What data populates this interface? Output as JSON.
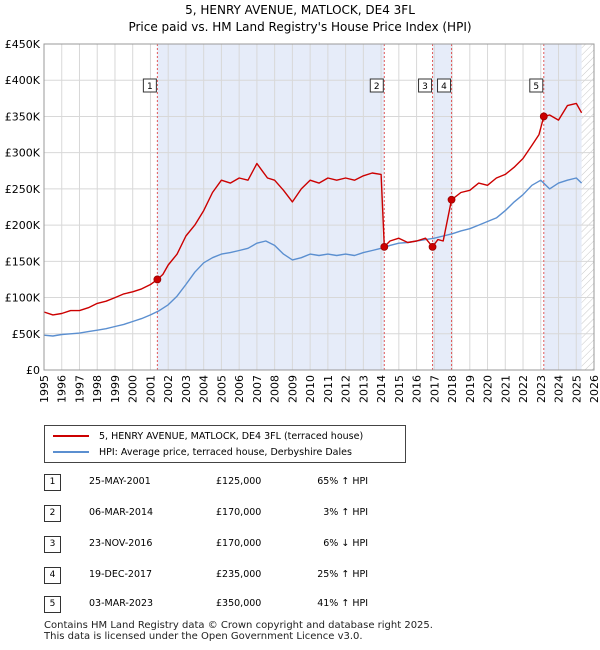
{
  "chart_data": {
    "type": "line",
    "title": "5, HENRY AVENUE, MATLOCK, DE4 3FL",
    "subtitle": "Price paid vs. HM Land Registry's House Price Index (HPI)",
    "xlabel": "",
    "ylabel": "",
    "xlim": [
      1995,
      2026
    ],
    "ylim": [
      0,
      450000
    ],
    "x_ticks": [
      "1995",
      "1996",
      "1997",
      "1998",
      "1999",
      "2000",
      "2001",
      "2002",
      "2003",
      "2004",
      "2005",
      "2006",
      "2007",
      "2008",
      "2009",
      "2010",
      "2011",
      "2012",
      "2013",
      "2014",
      "2015",
      "2016",
      "2017",
      "2018",
      "2019",
      "2020",
      "2021",
      "2022",
      "2023",
      "2024",
      "2025",
      "2026"
    ],
    "y_ticks": [
      {
        "value": 0,
        "label": "£0"
      },
      {
        "value": 50000,
        "label": "£50K"
      },
      {
        "value": 100000,
        "label": "£100K"
      },
      {
        "value": 150000,
        "label": "£150K"
      },
      {
        "value": 200000,
        "label": "£200K"
      },
      {
        "value": 250000,
        "label": "£250K"
      },
      {
        "value": 300000,
        "label": "£300K"
      },
      {
        "value": 350000,
        "label": "£350K"
      },
      {
        "value": 400000,
        "label": "£400K"
      },
      {
        "value": 450000,
        "label": "£450K"
      }
    ],
    "grid": true,
    "series": [
      {
        "name": "5, HENRY AVENUE, MATLOCK, DE4 3FL (terraced house)",
        "color": "#cc0000",
        "x": [
          1995.0,
          1995.5,
          1996.0,
          1996.5,
          1997.0,
          1997.5,
          1998.0,
          1998.5,
          1999.0,
          1999.5,
          2000.0,
          2000.5,
          2001.0,
          2001.4,
          2001.7,
          2002.0,
          2002.5,
          2003.0,
          2003.5,
          2004.0,
          2004.5,
          2005.0,
          2005.5,
          2006.0,
          2006.5,
          2007.0,
          2007.3,
          2007.6,
          2008.0,
          2008.5,
          2009.0,
          2009.5,
          2010.0,
          2010.5,
          2011.0,
          2011.5,
          2012.0,
          2012.5,
          2013.0,
          2013.5,
          2014.0,
          2014.18,
          2014.5,
          2015.0,
          2015.5,
          2016.0,
          2016.5,
          2016.9,
          2017.2,
          2017.5,
          2017.97,
          2018.5,
          2019.0,
          2019.5,
          2020.0,
          2020.5,
          2021.0,
          2021.5,
          2022.0,
          2022.5,
          2022.9,
          2023.17,
          2023.5,
          2024.0,
          2024.5,
          2025.0,
          2025.3
        ],
        "values": [
          80000,
          76000,
          78000,
          82000,
          82000,
          86000,
          92000,
          95000,
          100000,
          105000,
          108000,
          112000,
          118000,
          125000,
          132000,
          145000,
          160000,
          185000,
          200000,
          220000,
          245000,
          262000,
          258000,
          265000,
          262000,
          285000,
          275000,
          265000,
          262000,
          248000,
          232000,
          250000,
          262000,
          258000,
          265000,
          262000,
          265000,
          262000,
          268000,
          272000,
          270000,
          170000,
          178000,
          182000,
          176000,
          178000,
          182000,
          170000,
          180000,
          178000,
          235000,
          245000,
          248000,
          258000,
          255000,
          265000,
          270000,
          280000,
          292000,
          310000,
          325000,
          350000,
          352000,
          345000,
          365000,
          368000,
          355000
        ]
      },
      {
        "name": "HPI: Average price, terraced house, Derbyshire Dales",
        "color": "#5b8fd0",
        "x": [
          1995.0,
          1995.5,
          1996.0,
          1996.5,
          1997.0,
          1997.5,
          1998.0,
          1998.5,
          1999.0,
          1999.5,
          2000.0,
          2000.5,
          2001.0,
          2001.5,
          2002.0,
          2002.5,
          2003.0,
          2003.5,
          2004.0,
          2004.5,
          2005.0,
          2005.5,
          2006.0,
          2006.5,
          2007.0,
          2007.5,
          2008.0,
          2008.5,
          2009.0,
          2009.5,
          2010.0,
          2010.5,
          2011.0,
          2011.5,
          2012.0,
          2012.5,
          2013.0,
          2013.5,
          2014.0,
          2014.5,
          2015.0,
          2015.5,
          2016.0,
          2016.5,
          2017.0,
          2017.5,
          2018.0,
          2018.5,
          2019.0,
          2019.5,
          2020.0,
          2020.5,
          2021.0,
          2021.5,
          2022.0,
          2022.5,
          2023.0,
          2023.5,
          2024.0,
          2024.5,
          2025.0,
          2025.3
        ],
        "values": [
          48000,
          47000,
          49000,
          50000,
          51000,
          53000,
          55000,
          57000,
          60000,
          63000,
          67000,
          71000,
          76000,
          82000,
          90000,
          102000,
          118000,
          135000,
          148000,
          155000,
          160000,
          162000,
          165000,
          168000,
          175000,
          178000,
          172000,
          160000,
          152000,
          155000,
          160000,
          158000,
          160000,
          158000,
          160000,
          158000,
          162000,
          165000,
          168000,
          172000,
          175000,
          176000,
          178000,
          180000,
          182000,
          185000,
          188000,
          192000,
          195000,
          200000,
          205000,
          210000,
          220000,
          232000,
          242000,
          255000,
          262000,
          250000,
          258000,
          262000,
          265000,
          258000
        ]
      }
    ],
    "sales": [
      {
        "label": "1",
        "x": 2001.39,
        "value": 125000
      },
      {
        "label": "2",
        "x": 2014.18,
        "value": 170000
      },
      {
        "label": "3",
        "x": 2016.9,
        "value": 170000
      },
      {
        "label": "4",
        "x": 2017.97,
        "value": 235000
      },
      {
        "label": "5",
        "x": 2023.17,
        "value": 350000
      }
    ]
  },
  "legend": {
    "items": [
      {
        "label": "5, HENRY AVENUE, MATLOCK, DE4 3FL (terraced house)",
        "color": "#cc0000"
      },
      {
        "label": "HPI: Average price, terraced house, Derbyshire Dales",
        "color": "#5b8fd0"
      }
    ]
  },
  "table": {
    "rows": [
      {
        "num": "1",
        "date": "25-MAY-2001",
        "price": "£125,000",
        "hpi": "65% ↑ HPI"
      },
      {
        "num": "2",
        "date": "06-MAR-2014",
        "price": "£170,000",
        "hpi": "3% ↑ HPI"
      },
      {
        "num": "3",
        "date": "23-NOV-2016",
        "price": "£170,000",
        "hpi": "6% ↓ HPI"
      },
      {
        "num": "4",
        "date": "19-DEC-2017",
        "price": "£235,000",
        "hpi": "25% ↑ HPI"
      },
      {
        "num": "5",
        "date": "03-MAR-2023",
        "price": "£350,000",
        "hpi": "41% ↑ HPI"
      }
    ]
  },
  "footer": {
    "line1": "Contains HM Land Registry data © Crown copyright and database right 2025.",
    "line2": "This data is licensed under the Open Government Licence v3.0."
  }
}
